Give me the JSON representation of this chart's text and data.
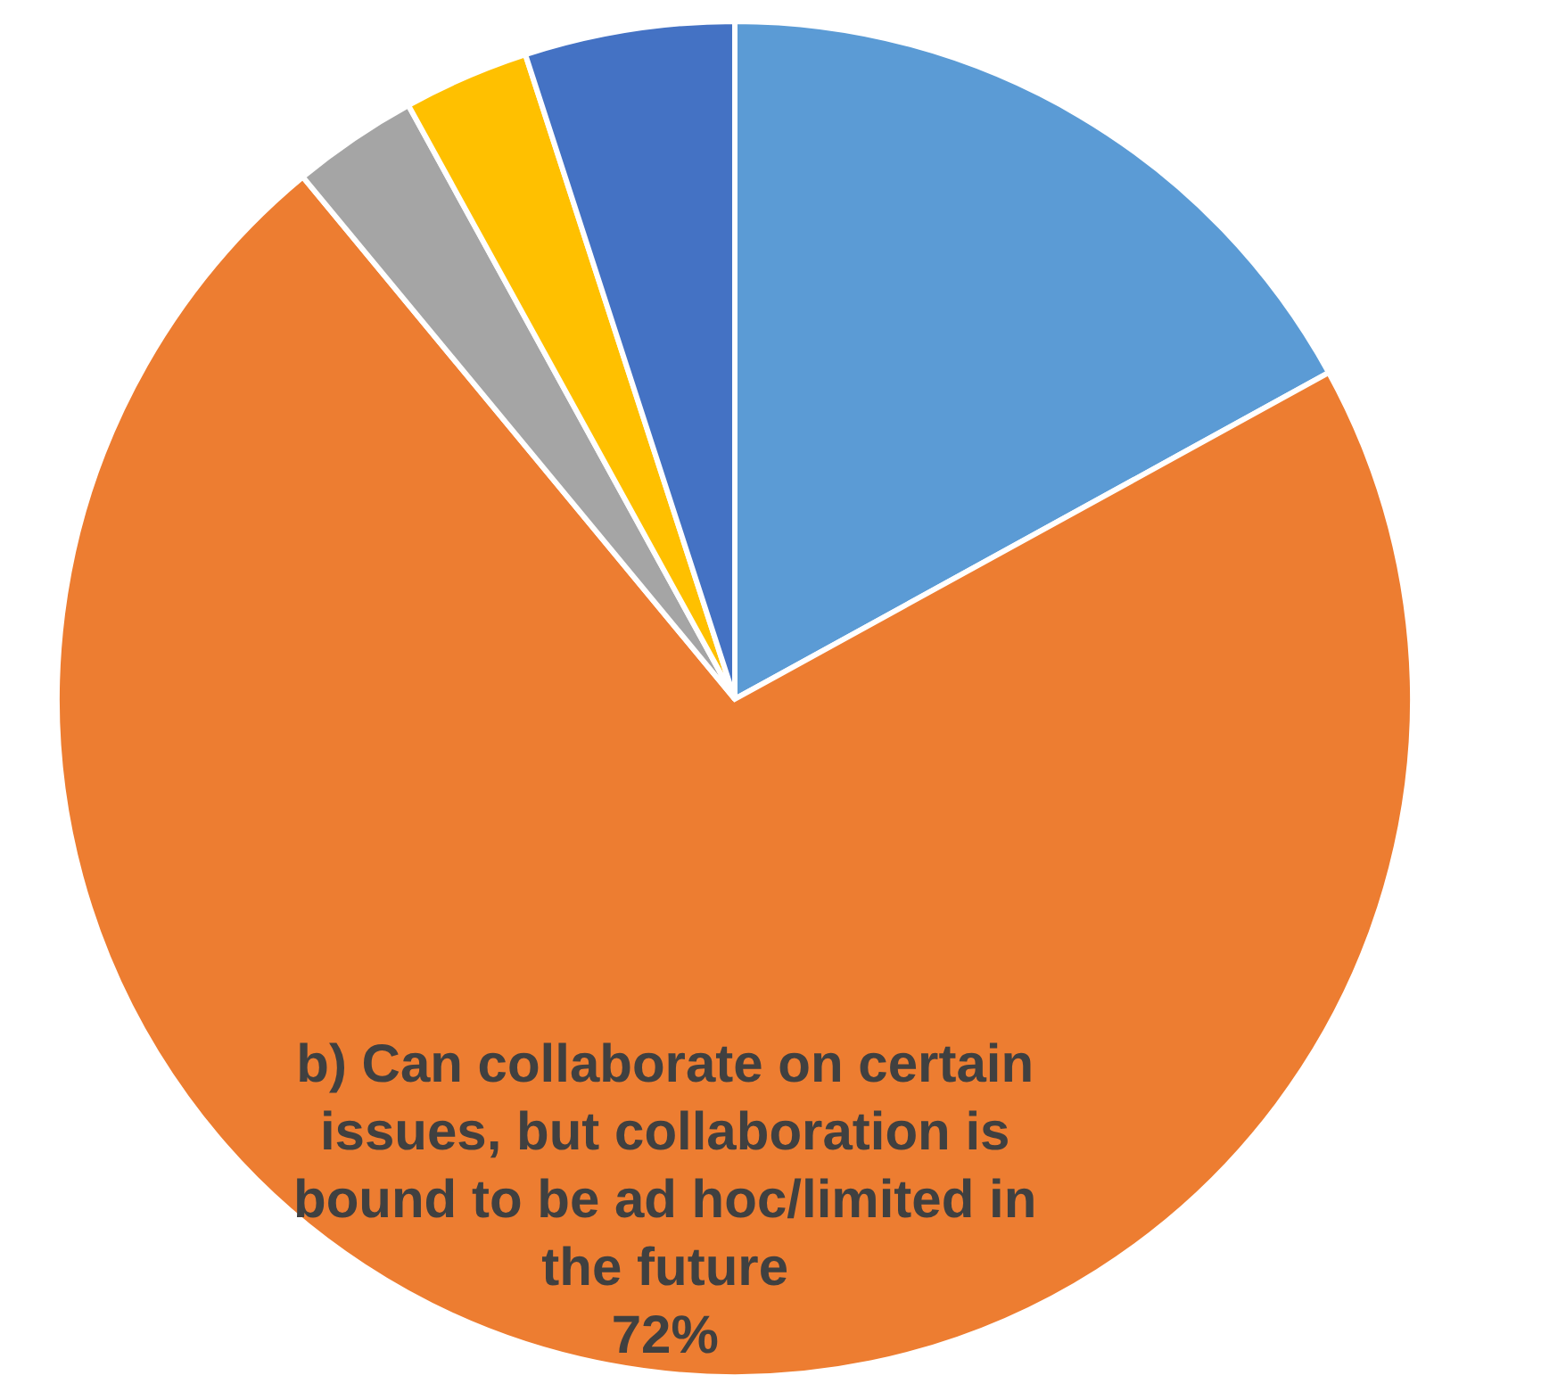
{
  "chart_data": {
    "type": "pie",
    "categories": [
      null,
      "b) Can collaborate on certain issues, but collaboration is bound to be ad hoc/limited in the future",
      null,
      null,
      null
    ],
    "values": [
      17,
      72,
      3,
      3,
      5
    ],
    "colors": [
      "#5b9bd5",
      "#ed7d31",
      "#a5a5a5",
      "#ffc000",
      "#4472c4"
    ],
    "value_labels": [
      null,
      "72%",
      null,
      null,
      null
    ],
    "legend": false
  }
}
